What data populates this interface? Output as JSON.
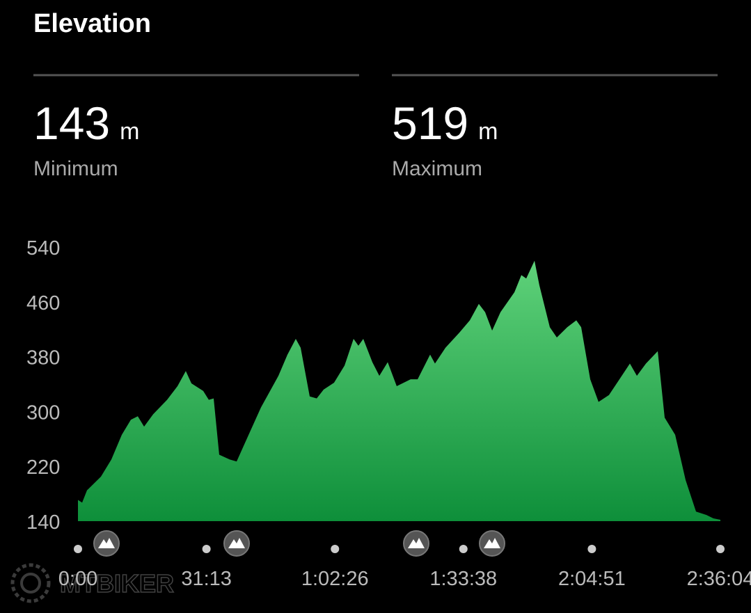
{
  "header": {
    "title": "Elevation",
    "stats": [
      {
        "value": "143",
        "unit": "m",
        "label": "Minimum"
      },
      {
        "value": "519",
        "unit": "m",
        "label": "Maximum"
      }
    ]
  },
  "watermark": "MTBIKER",
  "chart_data": {
    "type": "area",
    "x": [
      0,
      61,
      132,
      335,
      487,
      639,
      771,
      872,
      964,
      1096,
      1299,
      1451,
      1572,
      1654,
      1826,
      1907,
      1978,
      2059,
      2212,
      2313,
      2465,
      2668,
      2922,
      3054,
      3175,
      3246,
      3378,
      3480,
      3581,
      3733,
      3886,
      4017,
      4088,
      4159,
      4291,
      4393,
      4515,
      4646,
      4849,
      4951,
      5133,
      5204,
      5357,
      5559,
      5712,
      5843,
      5935,
      6037,
      6159,
      6362,
      6463,
      6534,
      6655,
      6726,
      6878,
      6980,
      7132,
      7264,
      7335,
      7467,
      7588,
      7740,
      7893,
      8045,
      8147,
      8279,
      8451,
      8552,
      8705,
      8857,
      9009,
      9161,
      9262,
      9364
    ],
    "values": [
      171,
      167,
      185,
      205,
      230,
      266,
      288,
      293,
      278,
      296,
      317,
      337,
      359,
      341,
      330,
      317,
      319,
      237,
      230,
      227,
      261,
      306,
      352,
      383,
      406,
      393,
      322,
      319,
      332,
      342,
      367,
      406,
      396,
      406,
      372,
      352,
      372,
      337,
      347,
      347,
      383,
      370,
      393,
      415,
      433,
      457,
      445,
      418,
      445,
      474,
      499,
      494,
      520,
      484,
      423,
      408,
      423,
      433,
      423,
      347,
      314,
      324,
      347,
      370,
      352,
      370,
      388,
      291,
      266,
      200,
      154,
      149,
      144,
      142
    ],
    "xlim": [
      0,
      9364
    ],
    "xticks": [
      {
        "value": 0,
        "label": "0:00"
      },
      {
        "value": 1873,
        "label": "31:13"
      },
      {
        "value": 3746,
        "label": "1:02:26"
      },
      {
        "value": 5618,
        "label": "1:33:38"
      },
      {
        "value": 7491,
        "label": "2:04:51"
      },
      {
        "value": 9364,
        "label": "2:36:04"
      }
    ],
    "ylim": [
      140,
      540
    ],
    "yticks": [
      140,
      220,
      300,
      380,
      460,
      540
    ],
    "color_top": "#5fd27a",
    "color_bottom": "#0e8f3a"
  }
}
